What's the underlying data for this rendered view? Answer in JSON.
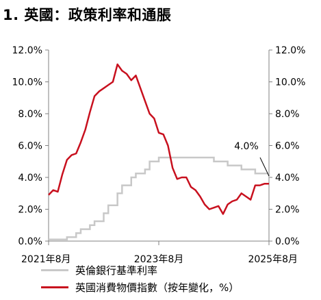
{
  "title": "1. 英國：政策利率和通脹",
  "colors": {
    "inflation": "#c8101e",
    "policy_rate": "#c8c8c8",
    "axis": "#808080"
  },
  "chart_data": {
    "type": "line",
    "title": "1. 英國：政策利率和通脹",
    "x": [
      "2021-08",
      "2021-09",
      "2021-10",
      "2021-11",
      "2021-12",
      "2022-01",
      "2022-02",
      "2022-03",
      "2022-04",
      "2022-05",
      "2022-06",
      "2022-07",
      "2022-08",
      "2022-09",
      "2022-10",
      "2022-11",
      "2022-12",
      "2023-01",
      "2023-02",
      "2023-03",
      "2023-04",
      "2023-05",
      "2023-06",
      "2023-07",
      "2023-08",
      "2023-09",
      "2023-10",
      "2023-11",
      "2023-12",
      "2024-01",
      "2024-02",
      "2024-03",
      "2024-04",
      "2024-05",
      "2024-06",
      "2024-07",
      "2024-08",
      "2024-09",
      "2024-10",
      "2024-11",
      "2024-12",
      "2025-01",
      "2025-02",
      "2025-03",
      "2025-04",
      "2025-05",
      "2025-06",
      "2025-07",
      "2025-08"
    ],
    "x_tick_labels": [
      "2021年8月",
      "2023年8月",
      "2025年8月"
    ],
    "series": [
      {
        "name": "英倫銀行基準利率",
        "color": "#c8c8c8",
        "values": [
          0.1,
          0.1,
          0.1,
          0.1,
          0.25,
          0.25,
          0.5,
          0.75,
          0.75,
          1.0,
          1.25,
          1.25,
          1.75,
          2.25,
          2.25,
          3.0,
          3.5,
          3.5,
          4.0,
          4.25,
          4.25,
          4.5,
          5.0,
          5.0,
          5.25,
          5.25,
          5.25,
          5.25,
          5.25,
          5.25,
          5.25,
          5.25,
          5.25,
          5.25,
          5.25,
          5.25,
          5.0,
          5.0,
          5.0,
          4.75,
          4.75,
          4.75,
          4.5,
          4.5,
          4.5,
          4.25,
          4.25,
          4.25,
          4.0
        ]
      },
      {
        "name": "英國消費物價指數（按年變化，%）",
        "color": "#c8101e",
        "values": [
          2.9,
          3.2,
          3.1,
          4.2,
          5.1,
          5.4,
          5.5,
          6.2,
          7.0,
          8.1,
          9.1,
          9.4,
          9.6,
          9.8,
          10.0,
          11.1,
          10.7,
          10.5,
          10.1,
          10.4,
          9.6,
          8.8,
          8.0,
          7.7,
          6.8,
          6.7,
          6.0,
          4.6,
          3.9,
          4.0,
          4.0,
          3.4,
          3.2,
          2.8,
          2.3,
          2.0,
          2.1,
          2.2,
          1.7,
          2.3,
          2.5,
          2.6,
          3.0,
          2.8,
          2.6,
          3.5,
          3.5,
          3.6,
          3.6
        ]
      }
    ],
    "y_left_ticks": [
      "0.0%",
      "2.0%",
      "4.0%",
      "6.0%",
      "8.0%",
      "10.0%",
      "12.0%"
    ],
    "y_right_ticks": [
      "0.0%",
      "2.0%",
      "4.0%",
      "6.0%",
      "8.0%",
      "10.0%",
      "12.0%"
    ],
    "ylim": [
      0,
      12
    ],
    "annotation": {
      "text": "4.0%",
      "points_to": "2025-08"
    },
    "legend": [
      "英倫銀行基準利率",
      "英國消費物價指數（按年變化，%）"
    ],
    "legend_placement": "bottom",
    "grid": false
  }
}
